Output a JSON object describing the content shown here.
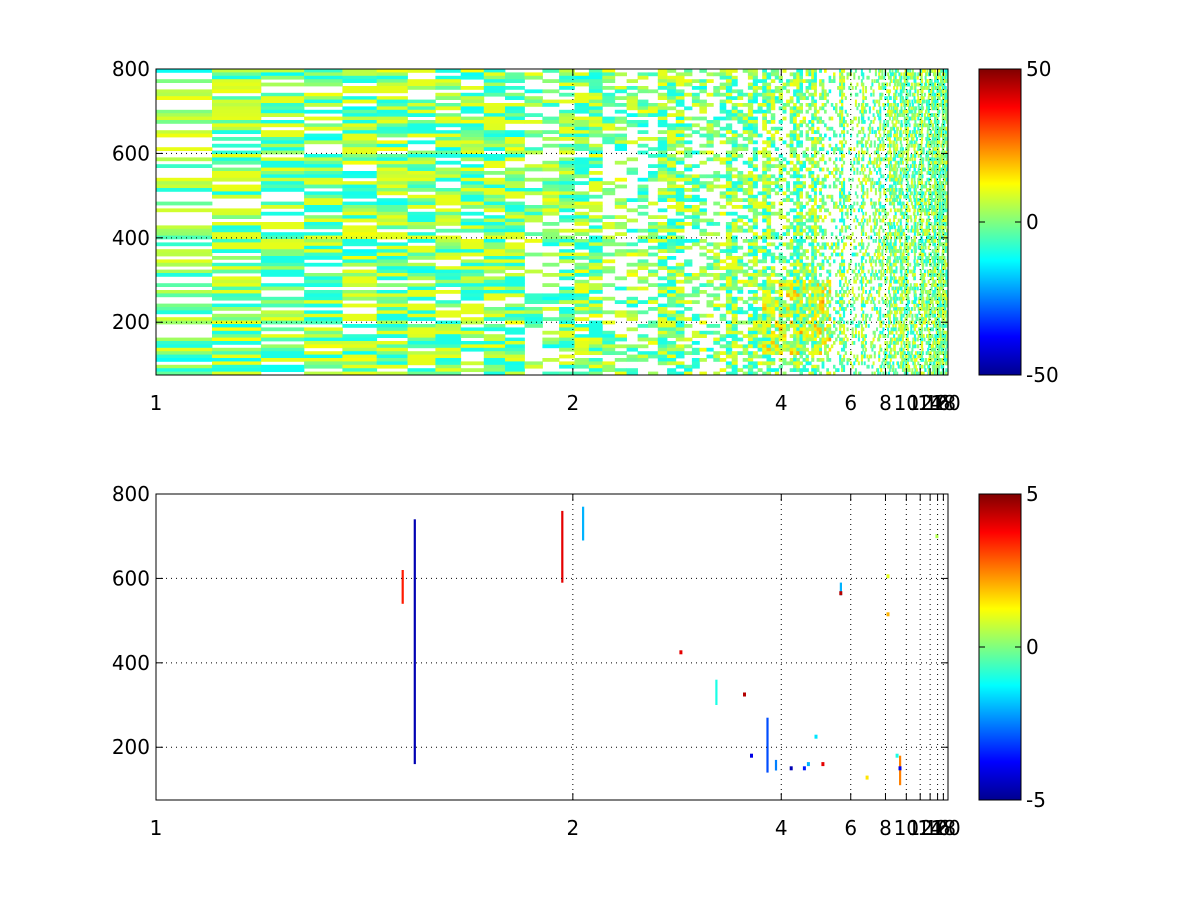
{
  "chart_data": [
    {
      "type": "heatmap",
      "title": "",
      "xlabel": "",
      "ylabel": "",
      "xlim": [
        1,
        20
      ],
      "ylim": [
        75,
        800
      ],
      "xscale": "reciprocal",
      "xticks": [
        1,
        2,
        4,
        6,
        8,
        10,
        12,
        14,
        16,
        18,
        20
      ],
      "yticks": [
        200,
        400,
        600,
        800
      ],
      "grid": true,
      "colormap": "jet",
      "colorbar": {
        "range": [
          -50,
          50
        ],
        "ticks": [
          50,
          0,
          -50
        ]
      },
      "column_bands": [
        1.1,
        1.2,
        1.35,
        1.5,
        1.7,
        2.0,
        2.6,
        3.2,
        3.5,
        3.7,
        4.3,
        4.7,
        5.6,
        6.5,
        7.5,
        8.3,
        8.7,
        9.3,
        10.0,
        11.0,
        12.1,
        13.5,
        15.0,
        15.9,
        17.5
      ],
      "hotspots": [
        {
          "x": [
            3.6,
            5.2
          ],
          "y": [
            120,
            300
          ],
          "value": 12
        }
      ],
      "density": "dense scattered cells at low x, sparser at high x"
    },
    {
      "type": "heatmap",
      "title": "",
      "xlabel": "",
      "ylabel": "",
      "xlim": [
        1,
        20
      ],
      "ylim": [
        75,
        800
      ],
      "xscale": "reciprocal",
      "xticks": [
        1,
        2,
        4,
        6,
        8,
        10,
        12,
        14,
        16,
        18,
        20
      ],
      "yticks": [
        200,
        400,
        600,
        800
      ],
      "grid": true,
      "colormap": "jet",
      "colorbar": {
        "range": [
          -5,
          5
        ],
        "ticks": [
          5,
          0,
          -5
        ]
      },
      "points": [
        {
          "x": 1.45,
          "y": [
            160,
            740
          ],
          "value": -4.5,
          "kind": "line"
        },
        {
          "x": 1.42,
          "y": [
            540,
            620
          ],
          "value": 3.5,
          "kind": "line"
        },
        {
          "x": 1.95,
          "y": [
            590,
            760
          ],
          "value": 4,
          "kind": "line"
        },
        {
          "x": 2.05,
          "y": [
            690,
            770
          ],
          "value": -2,
          "kind": "line"
        },
        {
          "x": 2.7,
          "y": 425,
          "value": 4
        },
        {
          "x": 3.05,
          "y": [
            300,
            360
          ],
          "value": -1,
          "kind": "line"
        },
        {
          "x": 3.4,
          "y": 325,
          "value": 4.5
        },
        {
          "x": 3.5,
          "y": 180,
          "value": -4
        },
        {
          "x": 3.75,
          "y": [
            140,
            270
          ],
          "value": -3,
          "kind": "line"
        },
        {
          "x": 3.9,
          "y": [
            145,
            170
          ],
          "value": -2.5,
          "kind": "line"
        },
        {
          "x": 4.2,
          "y": 150,
          "value": -4.5
        },
        {
          "x": 4.5,
          "y": 150,
          "value": -3.5
        },
        {
          "x": 4.6,
          "y": 160,
          "value": -2
        },
        {
          "x": 4.8,
          "y": 225,
          "value": -1.5
        },
        {
          "x": 5.0,
          "y": 160,
          "value": 4
        },
        {
          "x": 5.6,
          "y": [
            560,
            590
          ],
          "value": -2,
          "kind": "line"
        },
        {
          "x": 5.6,
          "y": 565,
          "value": 4.5
        },
        {
          "x": 6.8,
          "y": 128,
          "value": 1.5
        },
        {
          "x": 8.2,
          "y": 515,
          "value": 2
        },
        {
          "x": 8.2,
          "y": 605,
          "value": 1
        },
        {
          "x": 9.0,
          "y": 180,
          "value": -1
        },
        {
          "x": 9.3,
          "y": [
            110,
            180
          ],
          "value": 2.5,
          "kind": "line"
        },
        {
          "x": 9.3,
          "y": 150,
          "value": -4
        },
        {
          "x": 15.8,
          "y": 700,
          "value": 0.5
        }
      ]
    }
  ]
}
